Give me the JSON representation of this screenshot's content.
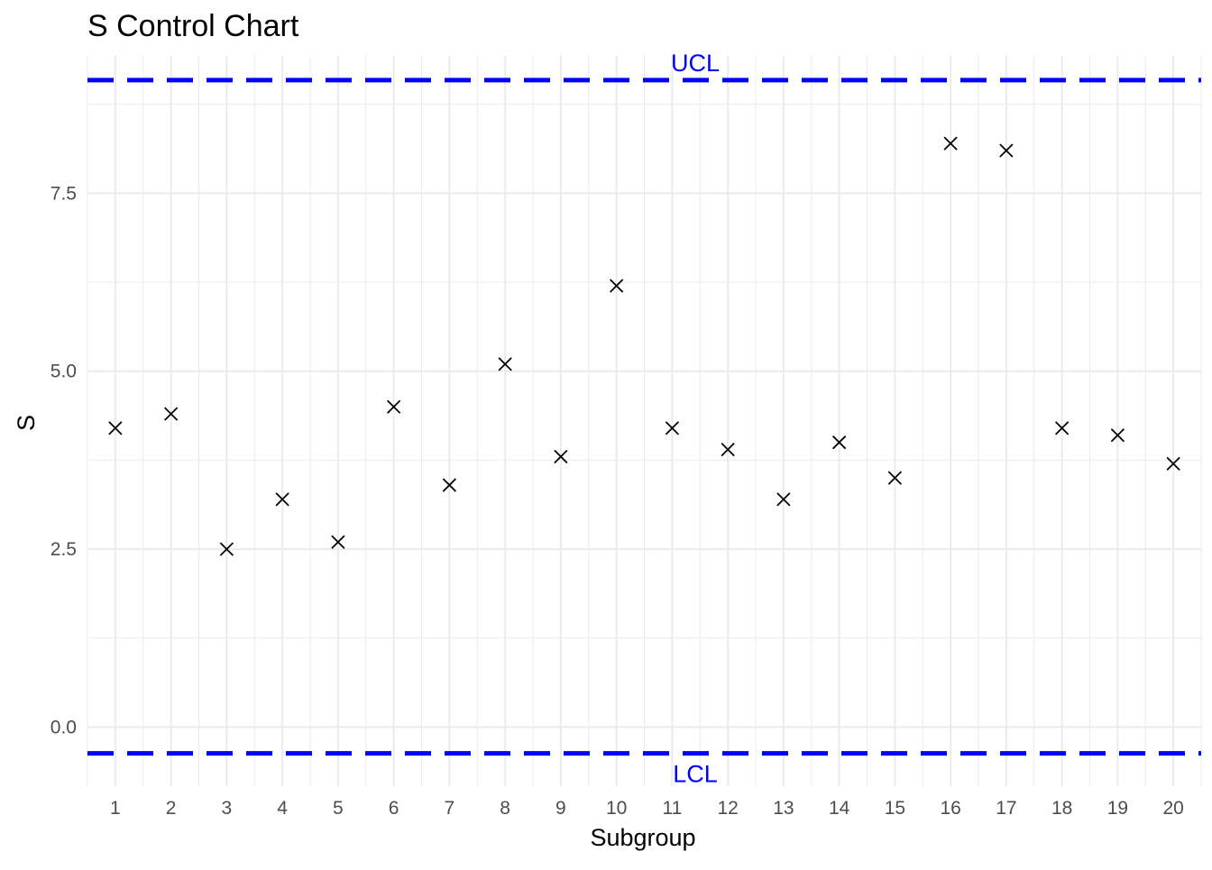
{
  "chart_data": {
    "type": "scatter",
    "title": "S Control Chart",
    "xlabel": "Subgroup",
    "ylabel": "S",
    "x": [
      1,
      2,
      3,
      4,
      5,
      6,
      7,
      8,
      9,
      10,
      11,
      12,
      13,
      14,
      15,
      16,
      17,
      18,
      19,
      20
    ],
    "values": [
      4.2,
      4.4,
      2.5,
      3.2,
      2.6,
      4.5,
      3.4,
      5.1,
      3.8,
      6.2,
      4.2,
      3.9,
      3.2,
      4.0,
      3.5,
      8.2,
      8.1,
      4.2,
      4.1,
      3.7
    ],
    "x_ticks": [
      "1",
      "2",
      "3",
      "4",
      "5",
      "6",
      "7",
      "8",
      "9",
      "10",
      "11",
      "12",
      "13",
      "14",
      "15",
      "16",
      "17",
      "18",
      "19",
      "20"
    ],
    "y_ticks": [
      "0.0",
      "2.5",
      "5.0",
      "7.5"
    ],
    "y_tick_values": [
      0,
      2.5,
      5,
      7.5
    ],
    "xlim": [
      0.5,
      20.5
    ],
    "ylim": [
      -0.83,
      9.43
    ],
    "marker": "x",
    "marker_color": "#000000",
    "grid": true,
    "reference_lines": [
      {
        "label": "UCL",
        "value": 9.09,
        "color": "#0000ff",
        "style": "dashed"
      },
      {
        "label": "LCL",
        "value": -0.37,
        "color": "#0000ff",
        "style": "dashed"
      }
    ]
  }
}
